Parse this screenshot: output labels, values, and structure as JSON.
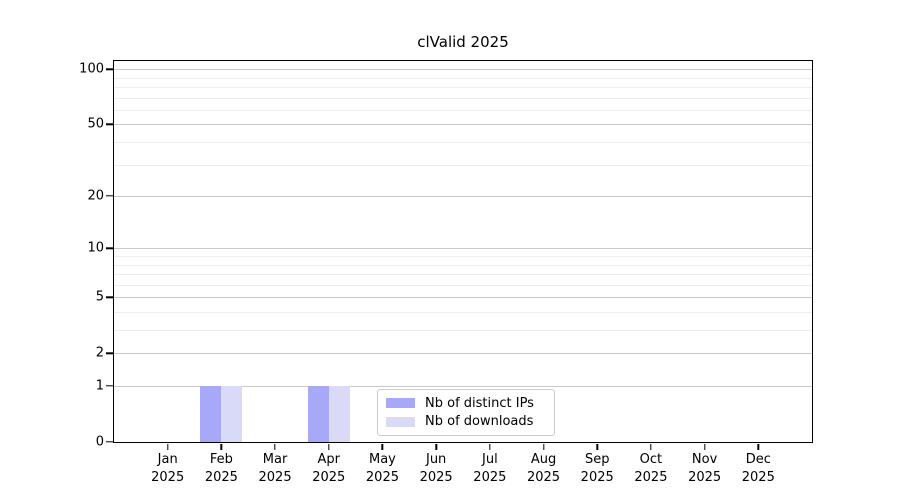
{
  "chart_data": {
    "type": "bar",
    "title": "clValid 2025",
    "categories": [
      "Jan",
      "Feb",
      "Mar",
      "Apr",
      "May",
      "Jun",
      "Jul",
      "Aug",
      "Sep",
      "Oct",
      "Nov",
      "Dec"
    ],
    "year_label": "2025",
    "series": [
      {
        "name": "Nb of distinct IPs",
        "color": "#a8a8f8",
        "values": [
          0,
          1,
          0,
          1,
          0,
          0,
          0,
          0,
          0,
          0,
          0,
          0
        ]
      },
      {
        "name": "Nb of downloads",
        "color": "#d9d9f8",
        "values": [
          0,
          1,
          0,
          1,
          0,
          0,
          0,
          0,
          0,
          0,
          0,
          0
        ]
      }
    ],
    "y_axis": {
      "scale": "log1p",
      "major_ticks": [
        0,
        1,
        2,
        5,
        10,
        20,
        50,
        100
      ],
      "minor_ticks": [
        3,
        4,
        6,
        7,
        8,
        9,
        30,
        40,
        60,
        70,
        80,
        90
      ],
      "range_top": 115
    },
    "x_axis": {
      "tick_years": "2025"
    },
    "legend": {
      "position": "lower-center-inside"
    },
    "colors": {
      "axis": "#000000",
      "grid_major": "#c9c9c9",
      "grid_minor": "#ededed",
      "background": "#ffffff"
    }
  }
}
